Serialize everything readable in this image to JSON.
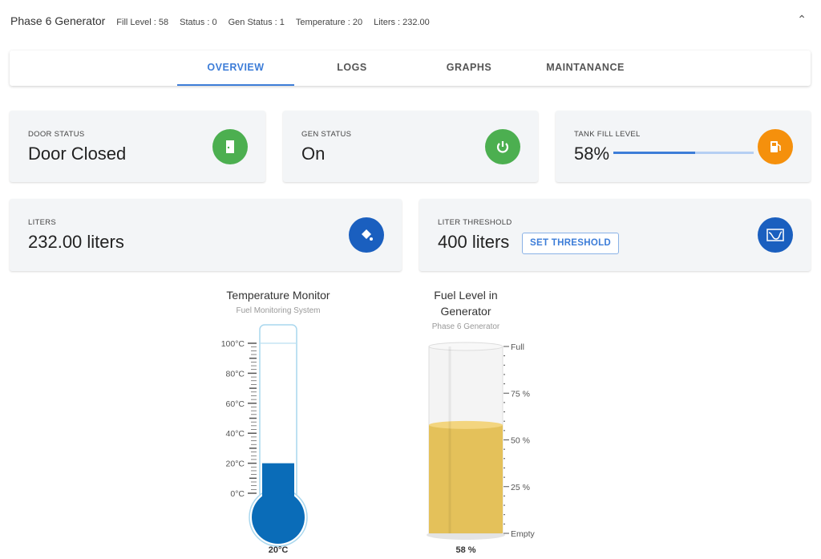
{
  "header": {
    "title": "Phase 6 Generator",
    "fields": [
      "Fill Level : 58",
      "Status : 0",
      "Gen Status : 1",
      "Temperature : 20",
      "Liters : 232.00"
    ]
  },
  "tabs": [
    "OVERVIEW",
    "LOGS",
    "GRAPHS",
    "MAINTANANCE"
  ],
  "cards": {
    "door": {
      "label": "DOOR STATUS",
      "value": "Door Closed",
      "icon": "door-icon",
      "color": "#4caf50"
    },
    "gen": {
      "label": "GEN STATUS",
      "value": "On",
      "icon": "power-icon",
      "color": "#4caf50"
    },
    "tank": {
      "label": "TANK FILL LEVEL",
      "value": "58%",
      "percent": 58,
      "icon": "fuel-pump-icon",
      "color": "#f5900c"
    },
    "liters": {
      "label": "LITERS",
      "value": "232.00 liters",
      "icon": "paint-bucket-icon",
      "color": "#1a5fbf"
    },
    "threshold": {
      "label": "LITER THRESHOLD",
      "value": "400 liters",
      "button": "SET THRESHOLD",
      "icon": "chart-icon",
      "color": "#1a5fbf"
    }
  },
  "chart_data": [
    {
      "type": "thermometer",
      "title": "Temperature Monitor",
      "subtitle": "Fuel Monitoring System",
      "value": 20,
      "value_label": "20°C",
      "range": [
        0,
        100
      ],
      "ticks": [
        "0°C",
        "20°C",
        "40°C",
        "60°C",
        "80°C",
        "100°C"
      ],
      "fill_color": "#0a6cb8"
    },
    {
      "type": "cylinder",
      "title": [
        "Fuel Level in",
        "Generator"
      ],
      "subtitle": "Phase 6 Generator",
      "value": 58,
      "value_label": "58 %",
      "range": [
        0,
        100
      ],
      "ticks": [
        "Empty",
        "25 %",
        "50 %",
        "75 %",
        "Full"
      ],
      "fill_color": "#e4c15a"
    }
  ]
}
